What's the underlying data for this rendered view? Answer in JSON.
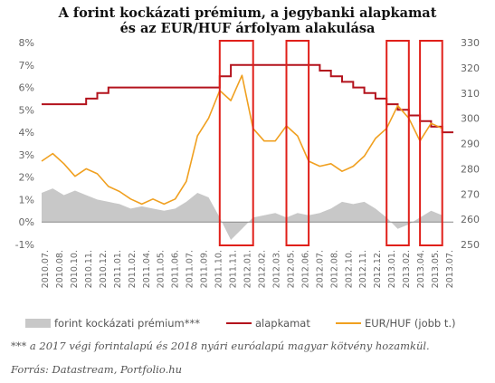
{
  "chart_data": {
    "type": "line",
    "title_lines": [
      "A forint kockázati prémium, a jegybanki alapkamat",
      "és az EUR/HUF árfolyam alakulása"
    ],
    "left_axis": {
      "ylim": [
        -1,
        8
      ],
      "ticks": [
        -1,
        0,
        1,
        2,
        3,
        4,
        5,
        6,
        7,
        8
      ],
      "tick_labels": [
        "-1%",
        "0%",
        "1%",
        "2%",
        "3%",
        "4%",
        "5%",
        "6%",
        "7%",
        "8%"
      ]
    },
    "right_axis": {
      "ylim": [
        250,
        330
      ],
      "ticks": [
        250,
        260,
        270,
        280,
        290,
        300,
        310,
        320,
        330
      ],
      "tick_labels": [
        "250",
        "260",
        "270",
        "280",
        "290",
        "300",
        "310",
        "320",
        "330"
      ]
    },
    "x_axis": {
      "range": [
        "2010.07",
        "2013.08"
      ],
      "tick_labels": [
        "2010.07.",
        "2010.08.",
        "2010.10.",
        "2010.11.",
        "2010.12.",
        "2011.01.",
        "2011.02.",
        "2011.04.",
        "2011.05.",
        "2011.06.",
        "2011.07.",
        "2011.09.",
        "2011.10.",
        "2011.11.",
        "2012.01.",
        "2012.02.",
        "2012.03.",
        "2012.05.",
        "2012.06.",
        "2012.07.",
        "2012.08.",
        "2012.10.",
        "2012.11.",
        "2012.12.",
        "2013.01.",
        "2013.02.",
        "2013.04.",
        "2013.05.",
        "2013.07."
      ]
    },
    "grid": false,
    "legend_position": "bottom",
    "series": [
      {
        "name": "forint kockázati prémium***",
        "kind": "area",
        "axis": "left",
        "color": "#c8c8c8",
        "points": [
          [
            "2010.07",
            1.3
          ],
          [
            "2010.08",
            1.5
          ],
          [
            "2010.09",
            1.2
          ],
          [
            "2010.10",
            1.4
          ],
          [
            "2010.11",
            1.2
          ],
          [
            "2010.12",
            1.0
          ],
          [
            "2011.01",
            0.9
          ],
          [
            "2011.02",
            0.8
          ],
          [
            "2011.03",
            0.6
          ],
          [
            "2011.04",
            0.7
          ],
          [
            "2011.05",
            0.6
          ],
          [
            "2011.06",
            0.5
          ],
          [
            "2011.07",
            0.6
          ],
          [
            "2011.08",
            0.9
          ],
          [
            "2011.09",
            1.3
          ],
          [
            "2011.10",
            1.1
          ],
          [
            "2011.11",
            0.2
          ],
          [
            "2011.12",
            -0.8
          ],
          [
            "2012.01",
            -0.3
          ],
          [
            "2012.02",
            0.2
          ],
          [
            "2012.03",
            0.3
          ],
          [
            "2012.04",
            0.4
          ],
          [
            "2012.05",
            0.2
          ],
          [
            "2012.06",
            0.4
          ],
          [
            "2012.07",
            0.3
          ],
          [
            "2012.08",
            0.4
          ],
          [
            "2012.09",
            0.6
          ],
          [
            "2012.10",
            0.9
          ],
          [
            "2012.11",
            0.8
          ],
          [
            "2012.12",
            0.9
          ],
          [
            "2013.01",
            0.6
          ],
          [
            "2013.02",
            0.2
          ],
          [
            "2013.03",
            -0.3
          ],
          [
            "2013.04",
            -0.1
          ],
          [
            "2013.05",
            0.2
          ],
          [
            "2013.06",
            0.5
          ],
          [
            "2013.07",
            0.3
          ]
        ]
      },
      {
        "name": "alapkamat",
        "kind": "step",
        "axis": "left",
        "color": "#b3121c",
        "points": [
          [
            "2010.07",
            5.25
          ],
          [
            "2010.11",
            5.5
          ],
          [
            "2010.12",
            5.75
          ],
          [
            "2011.01",
            6.0
          ],
          [
            "2011.11",
            6.5
          ],
          [
            "2011.12",
            7.0
          ],
          [
            "2012.08",
            6.75
          ],
          [
            "2012.09",
            6.5
          ],
          [
            "2012.10",
            6.25
          ],
          [
            "2012.11",
            6.0
          ],
          [
            "2012.12",
            5.75
          ],
          [
            "2013.01",
            5.5
          ],
          [
            "2013.02",
            5.25
          ],
          [
            "2013.03",
            5.0
          ],
          [
            "2013.04",
            4.75
          ],
          [
            "2013.05",
            4.5
          ],
          [
            "2013.06",
            4.25
          ],
          [
            "2013.07",
            4.0
          ]
        ]
      },
      {
        "name": "EUR/HUF (jobb t.)",
        "kind": "line",
        "axis": "right",
        "color": "#f0a020",
        "points": [
          [
            "2010.07",
            283
          ],
          [
            "2010.08",
            286
          ],
          [
            "2010.09",
            282
          ],
          [
            "2010.10",
            277
          ],
          [
            "2010.11",
            280
          ],
          [
            "2010.12",
            278
          ],
          [
            "2011.01",
            273
          ],
          [
            "2011.02",
            271
          ],
          [
            "2011.03",
            268
          ],
          [
            "2011.04",
            266
          ],
          [
            "2011.05",
            268
          ],
          [
            "2011.06",
            266
          ],
          [
            "2011.07",
            268
          ],
          [
            "2011.08",
            275
          ],
          [
            "2011.09",
            293
          ],
          [
            "2011.10",
            300
          ],
          [
            "2011.11",
            311
          ],
          [
            "2011.12",
            307
          ],
          [
            "2012.01",
            317
          ],
          [
            "2012.02",
            296
          ],
          [
            "2012.03",
            291
          ],
          [
            "2012.04",
            291
          ],
          [
            "2012.05",
            297
          ],
          [
            "2012.06",
            293
          ],
          [
            "2012.07",
            283
          ],
          [
            "2012.08",
            281
          ],
          [
            "2012.09",
            282
          ],
          [
            "2012.10",
            279
          ],
          [
            "2012.11",
            281
          ],
          [
            "2012.12",
            285
          ],
          [
            "2013.01",
            292
          ],
          [
            "2013.02",
            296
          ],
          [
            "2013.03",
            305
          ],
          [
            "2013.04",
            300
          ],
          [
            "2013.05",
            291
          ],
          [
            "2013.06",
            298
          ],
          [
            "2013.07",
            296
          ]
        ]
      }
    ],
    "highlight_boxes": [
      {
        "from": "2011.11",
        "to": "2012.02"
      },
      {
        "from": "2012.05",
        "to": "2012.07"
      },
      {
        "from": "2013.02",
        "to": "2013.04"
      },
      {
        "from": "2013.05",
        "to": "2013.07"
      }
    ]
  },
  "legend": {
    "premium": "forint kockázati prémium***",
    "rate": "alapkamat",
    "eurhuf": "EUR/HUF (jobb t.)"
  },
  "footnote": "*** a 2017 végi forintalapú és 2018 nyári euróalapú magyar kötvény hozamkül.",
  "source": "Forrás: Datastream, Portfolio.hu"
}
